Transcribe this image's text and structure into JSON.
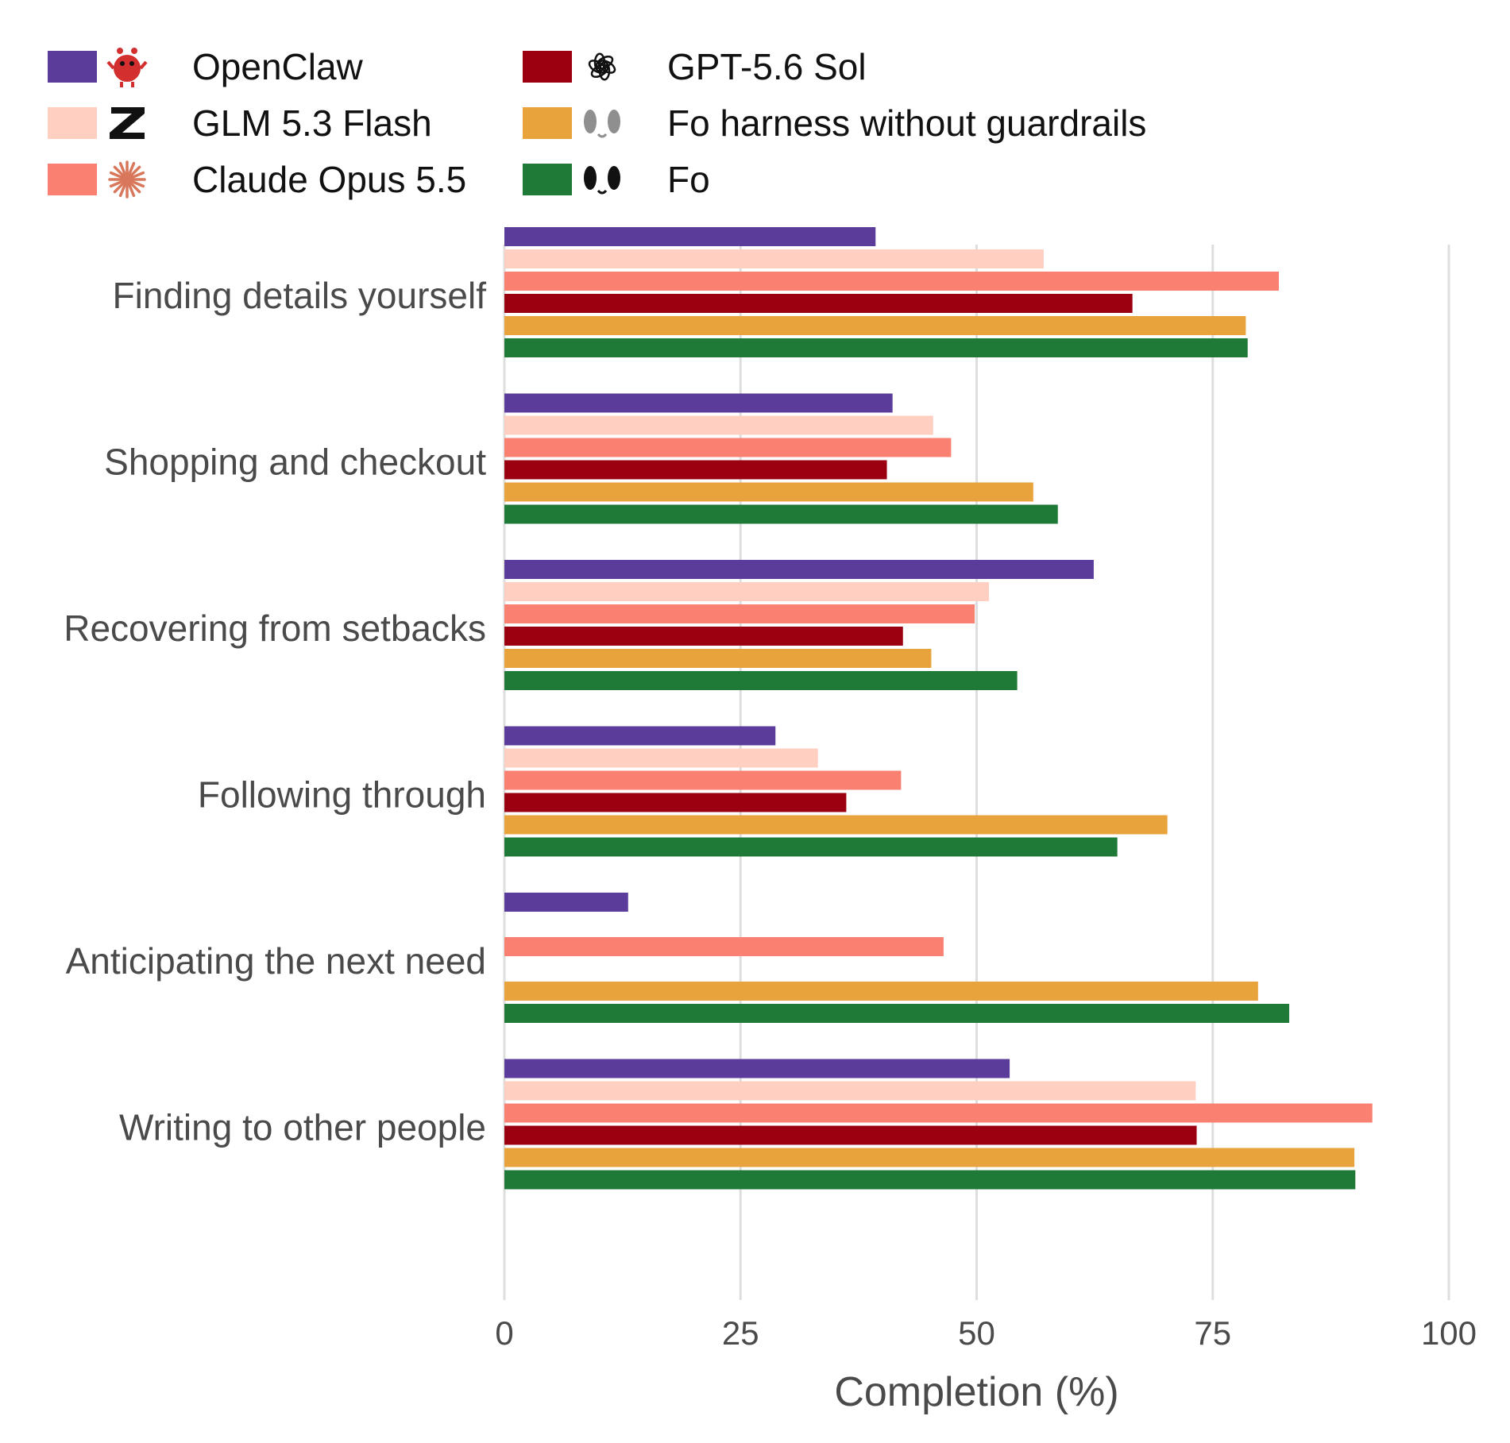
{
  "chart_data": {
    "type": "bar",
    "orientation": "horizontal",
    "categories": [
      "Finding details yourself",
      "Shopping and checkout",
      "Recovering from setbacks",
      "Following through",
      "Anticipating the next need",
      "Writing to other people"
    ],
    "series": [
      {
        "name": "OpenClaw",
        "color": "#5c3c9b",
        "icon": "red-crab-icon",
        "values": [
          39.3,
          41.1,
          62.4,
          28.7,
          13.1,
          53.5
        ]
      },
      {
        "name": "GLM 5.3 Flash",
        "color": "#ffcfc1",
        "icon": "z-logo-icon",
        "values": [
          57.1,
          45.4,
          51.3,
          33.2,
          null,
          73.2
        ]
      },
      {
        "name": "Claude Opus 5.5",
        "color": "#fa8072",
        "icon": "asterisk-burst-icon",
        "values": [
          82.0,
          47.3,
          49.8,
          42.0,
          46.5,
          91.9
        ]
      },
      {
        "name": "GPT-5.6 Sol",
        "color": "#9b0010",
        "icon": "openai-knot-icon",
        "values": [
          66.5,
          40.5,
          42.2,
          36.2,
          null,
          73.3
        ]
      },
      {
        "name": "Fo harness without guardrails",
        "color": "#e8a33c",
        "icon": "grey-eyes-icon",
        "values": [
          78.5,
          56.0,
          45.2,
          70.2,
          79.8,
          90.0
        ]
      },
      {
        "name": "Fo",
        "color": "#1e7a36",
        "icon": "black-eyes-icon",
        "values": [
          78.7,
          58.6,
          54.3,
          64.9,
          83.1,
          90.1
        ]
      }
    ],
    "xlabel": "Completion (%)",
    "ylabel": "",
    "xlim": [
      0,
      100
    ],
    "xticks": [
      0,
      25,
      50,
      75,
      100
    ],
    "grid": "vertical",
    "legend_position": "top"
  }
}
